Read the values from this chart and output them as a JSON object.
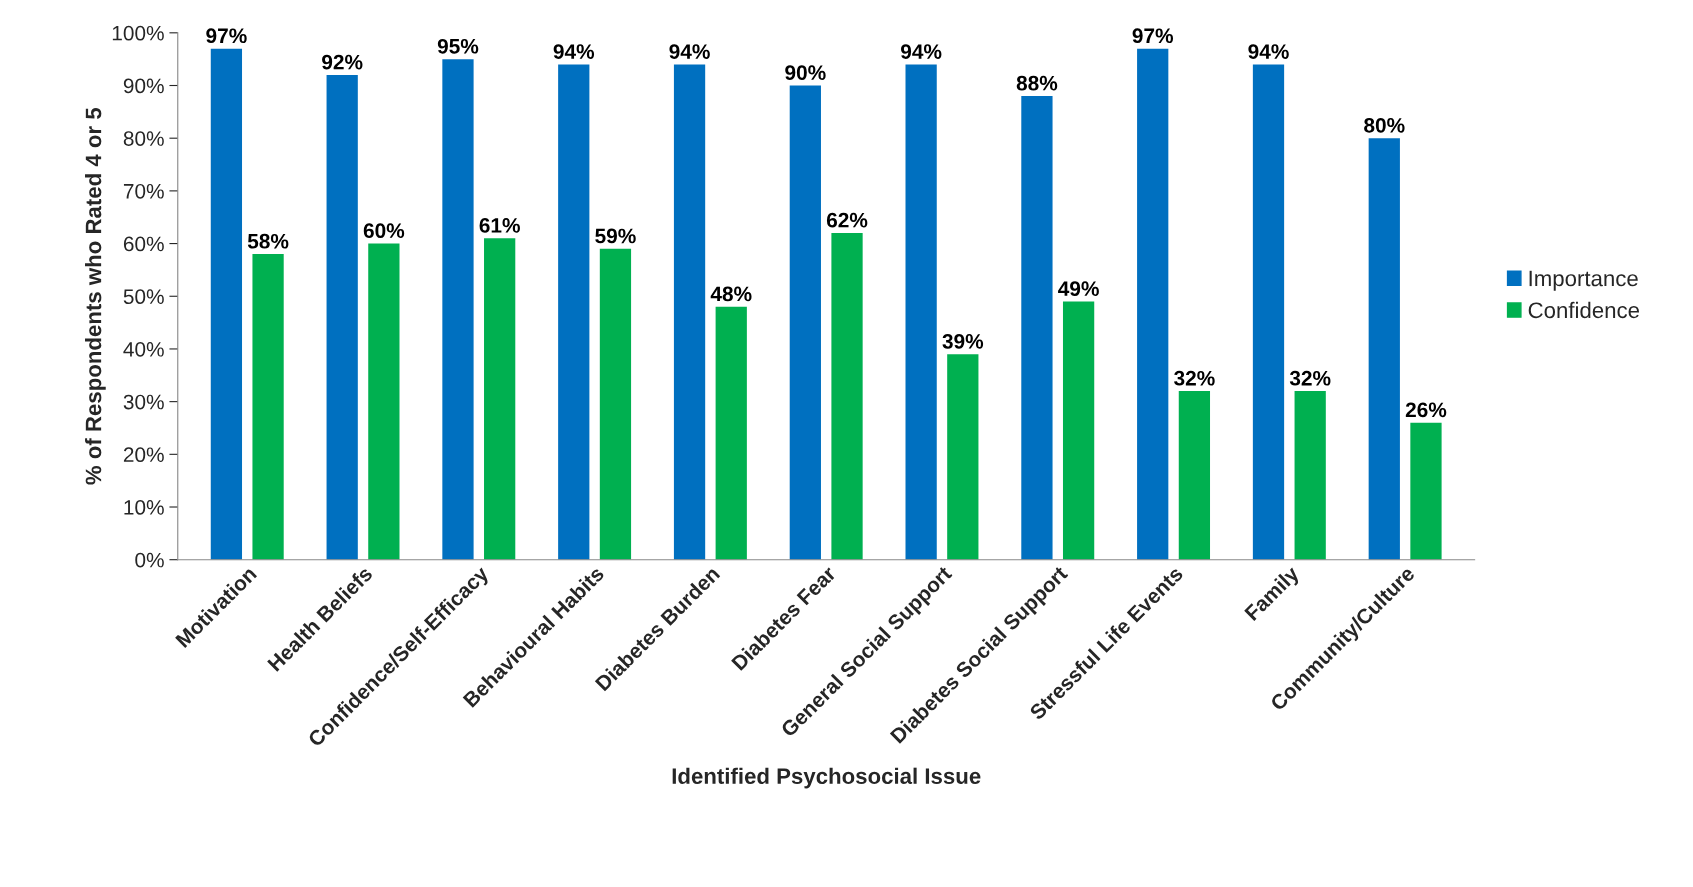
{
  "chart_data": {
    "type": "bar",
    "xlabel": "Identified Psychosocial Issue",
    "ylabel": "% of Respondents who Rated 4 or 5",
    "categories": [
      "Motivation",
      "Health Beliefs",
      "Confidence/Self-Efficacy",
      "Behavioural Habits",
      "Diabetes Burden",
      "Diabetes Fear",
      "General Social Support",
      "Diabetes Social Support",
      "Stressful Life Events",
      "Family",
      "Community/Culture"
    ],
    "series": [
      {
        "name": "Importance",
        "color": "#0070c0",
        "values": [
          97,
          92,
          95,
          94,
          94,
          90,
          94,
          88,
          97,
          94,
          80
        ],
        "value_labels": [
          "97%",
          "92%",
          "95%",
          "94%",
          "94%",
          "90%",
          "94%",
          "88%",
          "97%",
          "94%",
          "80%"
        ]
      },
      {
        "name": "Confidence",
        "color": "#00b050",
        "values": [
          58,
          60,
          61,
          59,
          48,
          62,
          39,
          49,
          32,
          32,
          26
        ],
        "value_labels": [
          "58%",
          "60%",
          "61%",
          "59%",
          "48%",
          "62%",
          "39%",
          "49%",
          "32%",
          "32%",
          "26%"
        ]
      }
    ],
    "ylim": [
      0,
      100
    ],
    "yticks": [
      {
        "value": 0,
        "label": "0%"
      },
      {
        "value": 10,
        "label": "10%"
      },
      {
        "value": 20,
        "label": "20%"
      },
      {
        "value": 30,
        "label": "30%"
      },
      {
        "value": 40,
        "label": "40%"
      },
      {
        "value": 50,
        "label": "50%"
      },
      {
        "value": 60,
        "label": "60%"
      },
      {
        "value": 70,
        "label": "70%"
      },
      {
        "value": 80,
        "label": "80%"
      },
      {
        "value": 90,
        "label": "90%"
      },
      {
        "value": 100,
        "label": "100%"
      }
    ],
    "grid": false,
    "legend": "right"
  }
}
